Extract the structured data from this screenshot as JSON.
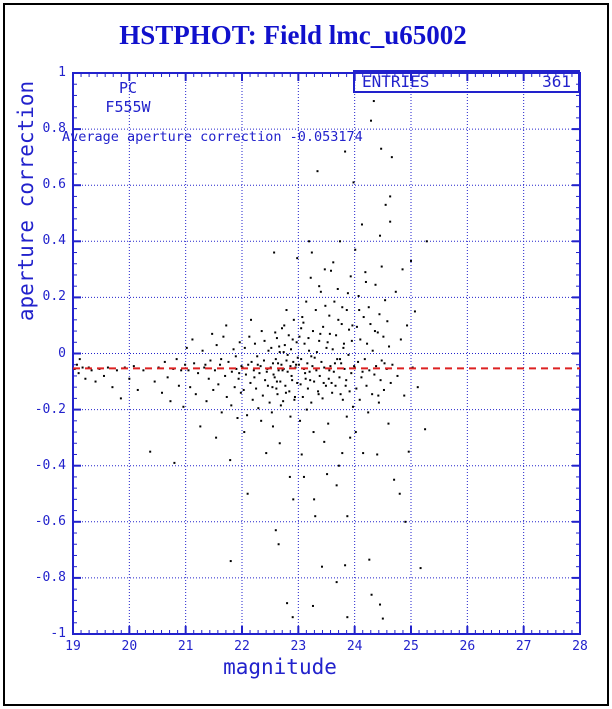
{
  "header": {
    "title": "HSTPHOT: Field lmc_u65002"
  },
  "legend_box": {
    "entries_label": "ENTRIES",
    "entries_value": "361"
  },
  "annotations": {
    "camera": "PC",
    "filter": "F555W",
    "average_text": "Average aperture correction -0.053174"
  },
  "colors": {
    "plot_blue": "#2222cc",
    "title_blue": "#1111cc",
    "average_line_red": "#dd2222",
    "point_black": "#000000",
    "background": "#ffffff",
    "outer_border": "#000000"
  },
  "chart_data": {
    "type": "scatter",
    "title": "HSTPHOT: Field lmc_u65002",
    "xlabel": "magnitude",
    "ylabel": "aperture correction",
    "xlim": [
      19,
      28
    ],
    "ylim": [
      -1,
      1
    ],
    "x_tick_values": [
      19,
      20,
      21,
      22,
      23,
      24,
      25,
      26,
      27,
      28
    ],
    "x_tick_labels": [
      "19",
      "20",
      "21",
      "22",
      "23",
      "24",
      "25",
      "26",
      "27",
      "28"
    ],
    "y_tick_values": [
      1,
      0.8,
      0.6,
      0.4,
      0.2,
      0,
      -0.2,
      -0.4,
      -0.6,
      -0.8,
      -1
    ],
    "y_tick_labels": [
      "1",
      "0.8",
      "0.6",
      "0.4",
      "0.2",
      "0",
      "-0.2",
      "-0.4",
      "-0.6",
      "-0.8",
      "-1"
    ],
    "grid": "dotted blue lines at every major tick",
    "legend_position": "top-right inside frame",
    "x_minor_divisions": 7,
    "y_minor_step": 0.04,
    "average_line": {
      "value": -0.053174,
      "style": "dashed",
      "color": "#dd2222"
    },
    "entries": 361,
    "points": [
      [
        19.03,
        -0.055
      ],
      [
        19.07,
        -0.04
      ],
      [
        19.1,
        -0.07
      ],
      [
        19.12,
        -0.02
      ],
      [
        19.17,
        -0.05
      ],
      [
        19.22,
        -0.09
      ],
      [
        19.28,
        -0.05
      ],
      [
        19.33,
        -0.06
      ],
      [
        19.4,
        -0.1
      ],
      [
        19.47,
        -0.055
      ],
      [
        19.55,
        -0.08
      ],
      [
        19.62,
        -0.05
      ],
      [
        19.7,
        -0.12
      ],
      [
        19.78,
        -0.06
      ],
      [
        19.85,
        -0.16
      ],
      [
        19.92,
        -0.05
      ],
      [
        20.0,
        -0.09
      ],
      [
        20.08,
        -0.045
      ],
      [
        20.15,
        -0.13
      ],
      [
        20.25,
        -0.06
      ],
      [
        20.37,
        -0.35
      ],
      [
        20.45,
        -0.1
      ],
      [
        20.52,
        -0.05
      ],
      [
        20.58,
        -0.14
      ],
      [
        20.63,
        -0.03
      ],
      [
        20.68,
        -0.085
      ],
      [
        20.73,
        -0.17
      ],
      [
        20.78,
        -0.055
      ],
      [
        20.8,
        -0.39
      ],
      [
        20.84,
        -0.02
      ],
      [
        20.88,
        -0.115
      ],
      [
        20.92,
        -0.06
      ],
      [
        20.96,
        -0.19
      ],
      [
        20.99,
        -0.04
      ],
      [
        21.02,
        0.02
      ],
      [
        21.05,
        -0.06
      ],
      [
        21.08,
        -0.12
      ],
      [
        21.12,
        0.05
      ],
      [
        21.15,
        -0.035
      ],
      [
        21.18,
        -0.145
      ],
      [
        21.22,
        -0.07
      ],
      [
        21.26,
        -0.26
      ],
      [
        21.3,
        0.01
      ],
      [
        21.33,
        -0.05
      ],
      [
        21.37,
        -0.17
      ],
      [
        21.41,
        -0.09
      ],
      [
        21.44,
        -0.025
      ],
      [
        21.47,
        0.07
      ],
      [
        21.49,
        -0.13
      ],
      [
        21.35,
        -0.04
      ],
      [
        21.52,
        -0.06
      ],
      [
        21.55,
        0.03
      ],
      [
        21.58,
        -0.11
      ],
      [
        21.61,
        -0.04
      ],
      [
        21.64,
        -0.21
      ],
      [
        21.67,
        0.06
      ],
      [
        21.7,
        -0.08
      ],
      [
        21.73,
        -0.155
      ],
      [
        21.76,
        -0.03
      ],
      [
        21.79,
        -0.38
      ],
      [
        21.8,
        -0.74
      ],
      [
        21.82,
        -0.065
      ],
      [
        21.85,
        0.015
      ],
      [
        21.87,
        -0.12
      ],
      [
        21.9,
        -0.055
      ],
      [
        21.92,
        -0.23
      ],
      [
        21.94,
        -0.09
      ],
      [
        21.96,
        0.04
      ],
      [
        21.98,
        -0.14
      ],
      [
        21.99,
        -0.045
      ],
      [
        21.54,
        -0.3
      ],
      [
        21.63,
        -0.02
      ],
      [
        21.72,
        0.1
      ],
      [
        21.81,
        -0.185
      ],
      [
        21.89,
        -0.01
      ],
      [
        21.95,
        -0.07
      ],
      [
        22.01,
        -0.05
      ],
      [
        22.03,
        -0.13
      ],
      [
        22.05,
        0.02
      ],
      [
        22.07,
        -0.075
      ],
      [
        22.09,
        -0.22
      ],
      [
        22.11,
        -0.04
      ],
      [
        22.13,
        0.06
      ],
      [
        22.15,
        -0.105
      ],
      [
        22.17,
        -0.03
      ],
      [
        22.19,
        -0.165
      ],
      [
        22.21,
        -0.06
      ],
      [
        22.23,
        0.035
      ],
      [
        22.25,
        -0.125
      ],
      [
        22.27,
        -0.01
      ],
      [
        22.29,
        -0.195
      ],
      [
        22.31,
        -0.07
      ],
      [
        22.33,
        -0.045
      ],
      [
        22.35,
        0.08
      ],
      [
        22.37,
        -0.15
      ],
      [
        22.39,
        -0.025
      ],
      [
        22.41,
        -0.095
      ],
      [
        22.43,
        -0.355
      ],
      [
        22.45,
        -0.055
      ],
      [
        22.47,
        0.01
      ],
      [
        22.49,
        -0.175
      ],
      [
        22.04,
        -0.28
      ],
      [
        22.1,
        -0.5
      ],
      [
        22.16,
        0.12
      ],
      [
        22.22,
        -0.085
      ],
      [
        22.28,
        -0.04
      ],
      [
        22.34,
        -0.24
      ],
      [
        22.4,
        0.045
      ],
      [
        22.46,
        -0.115
      ],
      [
        22.44,
        -0.065
      ],
      [
        22.51,
        -0.05
      ],
      [
        22.52,
        0.02
      ],
      [
        22.54,
        -0.12
      ],
      [
        22.55,
        -0.035
      ],
      [
        22.57,
        0.36
      ],
      [
        22.58,
        -0.085
      ],
      [
        22.6,
        -0.63
      ],
      [
        22.6,
        -0.02
      ],
      [
        22.62,
        0.055
      ],
      [
        22.63,
        -0.145
      ],
      [
        22.65,
        -0.68
      ],
      [
        22.65,
        -0.06
      ],
      [
        22.67,
        0.005
      ],
      [
        22.68,
        -0.1
      ],
      [
        22.7,
        -0.04
      ],
      [
        22.71,
        0.09
      ],
      [
        22.73,
        -0.17
      ],
      [
        22.74,
        -0.055
      ],
      [
        22.76,
        0.03
      ],
      [
        22.77,
        -0.115
      ],
      [
        22.79,
        -0.025
      ],
      [
        22.8,
        -0.89
      ],
      [
        22.81,
        -0.065
      ],
      [
        22.83,
        0.065
      ],
      [
        22.84,
        -0.135
      ],
      [
        22.86,
        -0.045
      ],
      [
        22.87,
        0.015
      ],
      [
        22.89,
        -0.095
      ],
      [
        22.9,
        -0.94
      ],
      [
        22.91,
        -0.03
      ],
      [
        22.92,
        0.12
      ],
      [
        22.94,
        -0.155
      ],
      [
        22.95,
        -0.05
      ],
      [
        22.97,
        0.04
      ],
      [
        22.98,
        -0.105
      ],
      [
        22.99,
        -0.015
      ],
      [
        22.53,
        -0.21
      ],
      [
        22.56,
        -0.075
      ],
      [
        22.59,
        0.075
      ],
      [
        22.61,
        -0.125
      ],
      [
        22.64,
        -0.035
      ],
      [
        22.66,
        0.025
      ],
      [
        22.69,
        -0.185
      ],
      [
        22.72,
        -0.06
      ],
      [
        22.75,
        0.1
      ],
      [
        22.78,
        -0.14
      ],
      [
        22.81,
        -0.005
      ],
      [
        22.85,
        -0.44
      ],
      [
        22.88,
        -0.08
      ],
      [
        22.9,
        0.05
      ],
      [
        22.93,
        -0.165
      ],
      [
        22.96,
        -0.04
      ],
      [
        22.98,
        0.34
      ],
      [
        22.55,
        -0.26
      ],
      [
        22.67,
        -0.32
      ],
      [
        22.79,
        0.155
      ],
      [
        22.91,
        -0.52
      ],
      [
        22.62,
        -0.1
      ],
      [
        22.74,
        0.005
      ],
      [
        22.86,
        -0.225
      ],
      [
        23.01,
        -0.04
      ],
      [
        23.02,
        0.06
      ],
      [
        23.04,
        -0.11
      ],
      [
        23.05,
        -0.02
      ],
      [
        23.07,
        0.13
      ],
      [
        23.08,
        -0.155
      ],
      [
        23.1,
        -0.055
      ],
      [
        23.11,
        0.035
      ],
      [
        23.13,
        -0.09
      ],
      [
        23.14,
        0.185
      ],
      [
        23.16,
        -0.035
      ],
      [
        23.17,
        -0.125
      ],
      [
        23.19,
        0.01
      ],
      [
        23.2,
        -0.065
      ],
      [
        23.22,
        0.27
      ],
      [
        23.23,
        -0.175
      ],
      [
        23.25,
        -0.045
      ],
      [
        23.26,
        0.08
      ],
      [
        23.28,
        -0.1
      ],
      [
        23.29,
        -0.015
      ],
      [
        23.31,
        0.155
      ],
      [
        23.32,
        -0.06
      ],
      [
        23.34,
        0.65
      ],
      [
        23.35,
        -0.135
      ],
      [
        23.37,
        0.045
      ],
      [
        23.38,
        -0.08
      ],
      [
        23.4,
        0.22
      ],
      [
        23.41,
        -0.03
      ],
      [
        23.43,
        -0.16
      ],
      [
        23.44,
        0.095
      ],
      [
        23.46,
        -0.05
      ],
      [
        23.47,
        0.3
      ],
      [
        23.49,
        -0.115
      ],
      [
        23.5,
        0.02
      ],
      [
        23.03,
        -0.24
      ],
      [
        23.06,
        -0.36
      ],
      [
        23.09,
        0.11
      ],
      [
        23.12,
        -0.07
      ],
      [
        23.15,
        -0.2
      ],
      [
        23.18,
        0.055
      ],
      [
        23.21,
        -0.095
      ],
      [
        23.24,
        0.36
      ],
      [
        23.27,
        -0.28
      ],
      [
        23.3,
        -0.58
      ],
      [
        23.33,
        0.005
      ],
      [
        23.36,
        -0.145
      ],
      [
        23.39,
        0.07
      ],
      [
        23.42,
        -0.76
      ],
      [
        23.45,
        -0.105
      ],
      [
        23.48,
        0.17
      ],
      [
        23.26,
        -0.9
      ],
      [
        23.1,
        -0.44
      ],
      [
        23.19,
        0.4
      ],
      [
        23.28,
        -0.52
      ],
      [
        23.37,
        0.24
      ],
      [
        23.46,
        -0.315
      ],
      [
        23.05,
        0.09
      ],
      [
        23.23,
        -0.01
      ],
      [
        23.51,
        -0.43
      ],
      [
        23.52,
        0.04
      ],
      [
        23.54,
        -0.09
      ],
      [
        23.55,
        0.135
      ],
      [
        23.57,
        -0.045
      ],
      [
        23.58,
        0.295
      ],
      [
        23.6,
        -0.14
      ],
      [
        23.61,
        0.015
      ],
      [
        23.63,
        -0.065
      ],
      [
        23.64,
        0.185
      ],
      [
        23.66,
        -0.115
      ],
      [
        23.67,
        0.065
      ],
      [
        23.69,
        -0.02
      ],
      [
        23.7,
        0.23
      ],
      [
        23.72,
        -0.4
      ],
      [
        23.73,
        -0.085
      ],
      [
        23.74,
        0.4
      ],
      [
        23.76,
        -0.035
      ],
      [
        23.77,
        0.105
      ],
      [
        23.78,
        -0.355
      ],
      [
        23.79,
        -0.165
      ],
      [
        23.81,
        0.035
      ],
      [
        23.82,
        -0.055
      ],
      [
        23.83,
        0.72
      ],
      [
        23.84,
        -0.115
      ],
      [
        23.86,
        0.155
      ],
      [
        23.87,
        -0.94
      ],
      [
        23.87,
        -0.58
      ],
      [
        23.89,
        -0.005
      ],
      [
        23.9,
        0.085
      ],
      [
        23.91,
        -0.135
      ],
      [
        23.93,
        0.275
      ],
      [
        23.94,
        -0.07
      ],
      [
        23.95,
        0.045
      ],
      [
        23.97,
        -0.19
      ],
      [
        23.98,
        0.61
      ],
      [
        23.99,
        -0.045
      ],
      [
        23.53,
        -0.25
      ],
      [
        23.56,
        0.07
      ],
      [
        23.59,
        -0.105
      ],
      [
        23.62,
        0.325
      ],
      [
        23.65,
        -0.035
      ],
      [
        23.68,
        -0.47
      ],
      [
        23.71,
        0.12
      ],
      [
        23.75,
        -0.145
      ],
      [
        23.8,
        0.02
      ],
      [
        23.83,
        -0.755
      ],
      [
        23.85,
        -0.095
      ],
      [
        23.88,
        0.215
      ],
      [
        23.92,
        -0.3
      ],
      [
        23.96,
        0.1
      ],
      [
        23.68,
        -0.815
      ],
      [
        23.74,
        -0.02
      ],
      [
        23.86,
        -0.225
      ],
      [
        23.55,
        -0.06
      ],
      [
        23.78,
        0.165
      ],
      [
        24.0,
        -0.05
      ],
      [
        24.01,
        0.37
      ],
      [
        24.03,
        -0.125
      ],
      [
        24.04,
        0.095
      ],
      [
        24.06,
        -0.03
      ],
      [
        24.07,
        0.205
      ],
      [
        24.09,
        -0.165
      ],
      [
        24.1,
        0.05
      ],
      [
        24.12,
        -0.085
      ],
      [
        24.13,
        0.46
      ],
      [
        24.15,
        -0.355
      ],
      [
        24.16,
        0.13
      ],
      [
        24.18,
        -0.02
      ],
      [
        24.19,
        0.29
      ],
      [
        24.21,
        -0.115
      ],
      [
        24.22,
        0.035
      ],
      [
        24.24,
        -0.21
      ],
      [
        24.25,
        0.165
      ],
      [
        24.26,
        -0.06
      ],
      [
        24.28,
        0.105
      ],
      [
        24.29,
        0.83
      ],
      [
        24.31,
        -0.145
      ],
      [
        24.32,
        0.01
      ],
      [
        24.34,
        0.9
      ],
      [
        24.35,
        -0.075
      ],
      [
        24.37,
        0.245
      ],
      [
        24.38,
        -0.045
      ],
      [
        24.4,
        -0.36
      ],
      [
        24.41,
        0.075
      ],
      [
        24.43,
        -0.175
      ],
      [
        24.44,
        0.14
      ],
      [
        24.45,
        0.42
      ],
      [
        24.46,
        -0.095
      ],
      [
        24.47,
        0.73
      ],
      [
        24.48,
        -0.025
      ],
      [
        24.5,
        -0.945
      ],
      [
        24.51,
        0.06
      ],
      [
        24.52,
        -0.13
      ],
      [
        24.54,
        0.19
      ],
      [
        24.55,
        0.53
      ],
      [
        24.57,
        -0.055
      ],
      [
        24.58,
        0.115
      ],
      [
        24.6,
        -0.25
      ],
      [
        24.61,
        0.025
      ],
      [
        24.63,
        0.56
      ],
      [
        24.63,
        0.47
      ],
      [
        24.64,
        -0.105
      ],
      [
        24.66,
        0.7
      ],
      [
        24.67,
        -0.04
      ],
      [
        24.02,
        -0.28
      ],
      [
        24.08,
        0.155
      ],
      [
        24.14,
        -0.065
      ],
      [
        24.2,
        0.255
      ],
      [
        24.26,
        -0.735
      ],
      [
        24.3,
        -0.86
      ],
      [
        24.36,
        0.08
      ],
      [
        24.42,
        -0.15
      ],
      [
        24.45,
        -0.895
      ],
      [
        24.48,
        0.31
      ],
      [
        24.53,
        -0.035
      ],
      [
        24.7,
        -0.45
      ],
      [
        24.73,
        0.22
      ],
      [
        24.76,
        -0.08
      ],
      [
        24.8,
        -0.5
      ],
      [
        24.82,
        0.05
      ],
      [
        24.85,
        0.3
      ],
      [
        24.88,
        -0.15
      ],
      [
        24.9,
        -0.6
      ],
      [
        24.93,
        0.1
      ],
      [
        24.96,
        -0.35
      ],
      [
        25.0,
        0.33
      ],
      [
        25.03,
        -0.05
      ],
      [
        25.07,
        0.15
      ],
      [
        25.12,
        -0.12
      ],
      [
        25.17,
        -0.765
      ],
      [
        25.25,
        -0.27
      ],
      [
        25.28,
        0.4
      ]
    ]
  }
}
